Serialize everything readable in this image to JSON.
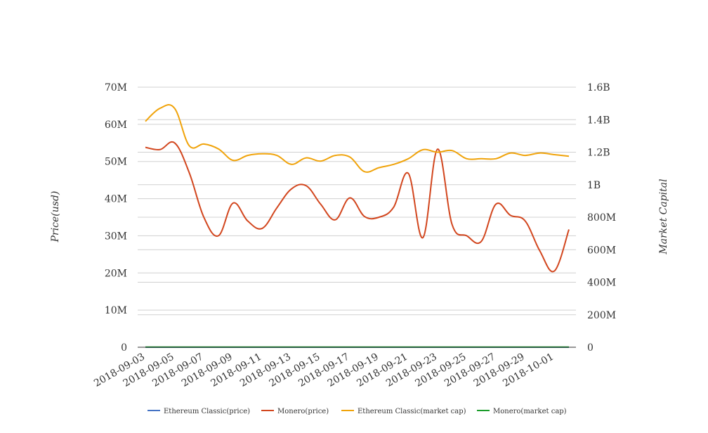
{
  "chart_data": {
    "type": "line",
    "title": "",
    "xlabel": "",
    "ylabel_left": "Price(usd)",
    "ylabel_right": "Market Capital",
    "x_tick_labels": [
      "2018-09-03",
      "2018-09-05",
      "2018-09-07",
      "2018-09-09",
      "2018-09-11",
      "2018-09-13",
      "2018-09-15",
      "2018-09-17",
      "2018-09-19",
      "2018-09-21",
      "2018-09-23",
      "2018-09-25",
      "2018-09-27",
      "2018-09-29",
      "2018-10-01"
    ],
    "left_axis": {
      "ylim": [
        0,
        70000000
      ],
      "ticks": [
        0,
        10000000,
        20000000,
        30000000,
        40000000,
        50000000,
        60000000,
        70000000
      ],
      "tick_labels": [
        "0",
        "10M",
        "20M",
        "30M",
        "40M",
        "50M",
        "60M",
        "70M"
      ]
    },
    "right_axis": {
      "ylim": [
        0,
        1600000000
      ],
      "ticks": [
        0,
        200000000,
        400000000,
        600000000,
        800000000,
        1000000000,
        1200000000,
        1400000000,
        1600000000
      ],
      "tick_labels": [
        "0",
        "200M",
        "400M",
        "600M",
        "800M",
        "1B",
        "1.2B",
        "1.4B",
        "1.6B"
      ]
    },
    "grid": true,
    "legend_position": "bottom",
    "x": [
      "2018-09-03",
      "2018-09-04",
      "2018-09-05",
      "2018-09-06",
      "2018-09-07",
      "2018-09-08",
      "2018-09-09",
      "2018-09-10",
      "2018-09-11",
      "2018-09-12",
      "2018-09-13",
      "2018-09-14",
      "2018-09-15",
      "2018-09-16",
      "2018-09-17",
      "2018-09-18",
      "2018-09-19",
      "2018-09-20",
      "2018-09-21",
      "2018-09-22",
      "2018-09-23",
      "2018-09-24",
      "2018-09-25",
      "2018-09-26",
      "2018-09-27",
      "2018-09-28",
      "2018-09-29",
      "2018-09-30",
      "2018-10-01",
      "2018-10-02"
    ],
    "series": [
      {
        "name": "Ethereum Classic(price)",
        "axis": "left",
        "color": "#4472c4",
        "values": [
          15,
          15,
          15,
          15,
          15,
          15,
          15,
          15,
          15,
          15,
          15,
          15,
          15,
          15,
          15,
          15,
          15,
          15,
          15,
          15,
          15,
          15,
          15,
          15,
          15,
          15,
          15,
          15,
          15,
          15
        ]
      },
      {
        "name": "Monero(price)",
        "axis": "left",
        "color": "#d2461e",
        "values": [
          53800000,
          53200000,
          55000000,
          47000000,
          35000000,
          30000000,
          38800000,
          34000000,
          32000000,
          37500000,
          42600000,
          43500000,
          38500000,
          34300000,
          40200000,
          35200000,
          35000000,
          37700000,
          46800000,
          29500000,
          53300000,
          33000000,
          30000000,
          28500000,
          38500000,
          35500000,
          34000000,
          26000000,
          20500000,
          31700000
        ]
      },
      {
        "name": "Ethereum Classic(market cap)",
        "axis": "right",
        "color": "#f0a30a",
        "values": [
          1390000000,
          1470000000,
          1470000000,
          1240000000,
          1250000000,
          1220000000,
          1150000000,
          1180000000,
          1190000000,
          1180000000,
          1125000000,
          1165000000,
          1145000000,
          1180000000,
          1170000000,
          1080000000,
          1105000000,
          1125000000,
          1160000000,
          1215000000,
          1200000000,
          1210000000,
          1160000000,
          1160000000,
          1160000000,
          1195000000,
          1180000000,
          1195000000,
          1185000000,
          1175000000
        ]
      },
      {
        "name": "Monero(market cap)",
        "axis": "right",
        "color": "#1a9c2a",
        "values": [
          1000000,
          1000000,
          1000000,
          1000000,
          1000000,
          1000000,
          1000000,
          1000000,
          1000000,
          1000000,
          1000000,
          1000000,
          1000000,
          1000000,
          1000000,
          1000000,
          1000000,
          1000000,
          1000000,
          1000000,
          1000000,
          1000000,
          1000000,
          1000000,
          1000000,
          1000000,
          1000000,
          1000000,
          1000000,
          1000000
        ]
      }
    ]
  }
}
